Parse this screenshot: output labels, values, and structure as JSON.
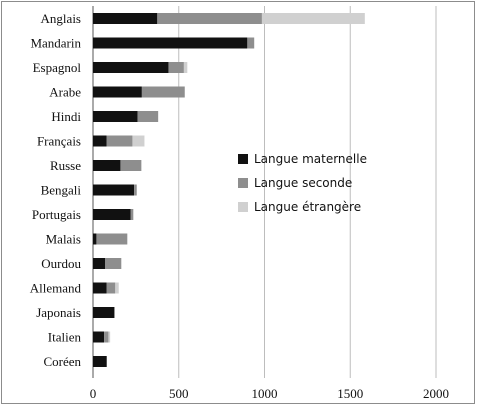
{
  "chart_data": {
    "type": "bar",
    "orientation": "horizontal",
    "stacked": true,
    "categories": [
      "Anglais",
      "Mandarin",
      "Espagnol",
      "Arabe",
      "Hindi",
      "Français",
      "Russe",
      "Bengali",
      "Portugais",
      "Malais",
      "Ourdou",
      "Allemand",
      "Japonais",
      "Italien",
      "Coréen"
    ],
    "series": [
      {
        "name": "Langue maternelle",
        "color": "#111111",
        "values": [
          375,
          900,
          440,
          285,
          260,
          80,
          160,
          240,
          220,
          20,
          70,
          80,
          125,
          65,
          80
        ]
      },
      {
        "name": "Langue seconde",
        "color": "#8e8e8e",
        "values": [
          610,
          40,
          90,
          250,
          120,
          150,
          120,
          15,
          15,
          180,
          95,
          50,
          0,
          25,
          0
        ]
      },
      {
        "name": "Langue étrangère",
        "color": "#d0d0d0",
        "values": [
          600,
          0,
          20,
          0,
          0,
          70,
          5,
          0,
          0,
          0,
          0,
          20,
          0,
          10,
          0
        ]
      }
    ],
    "xlim": [
      0,
      2000
    ],
    "xticks": [
      "0",
      "500",
      "1000",
      "1500",
      "2000"
    ],
    "xgrid": true,
    "legend_position": "center-right"
  }
}
